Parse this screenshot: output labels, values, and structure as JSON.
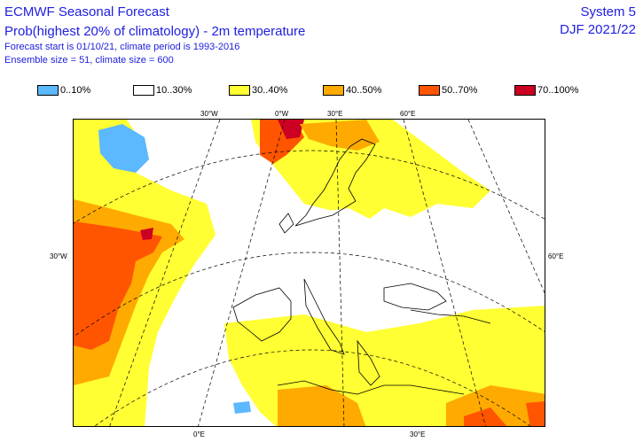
{
  "header": {
    "title": "ECMWF Seasonal Forecast",
    "subtitle": "Prob(highest 20% of climatology) - 2m temperature",
    "forecast_info": "Forecast start is 01/10/21, climate period is 1993-2016",
    "ensemble_info": "Ensemble size = 51, climate size = 600",
    "system": "System 5",
    "season": "DJF 2021/22"
  },
  "legend": [
    {
      "label": "0..10%",
      "color": "#5cb8ff"
    },
    {
      "label": "10..30%",
      "color": "#ffffff"
    },
    {
      "label": "30..40%",
      "color": "#ffff33"
    },
    {
      "label": "40..50%",
      "color": "#ffaa00"
    },
    {
      "label": "50..70%",
      "color": "#ff5500"
    },
    {
      "label": "70..100%",
      "color": "#cc0022"
    }
  ],
  "axis_labels": {
    "top": [
      "30°W",
      "0°W",
      "30°E",
      "60°E"
    ],
    "left": "30°W",
    "right": "60°E",
    "bottom": [
      "0°E",
      "30°E"
    ]
  }
}
